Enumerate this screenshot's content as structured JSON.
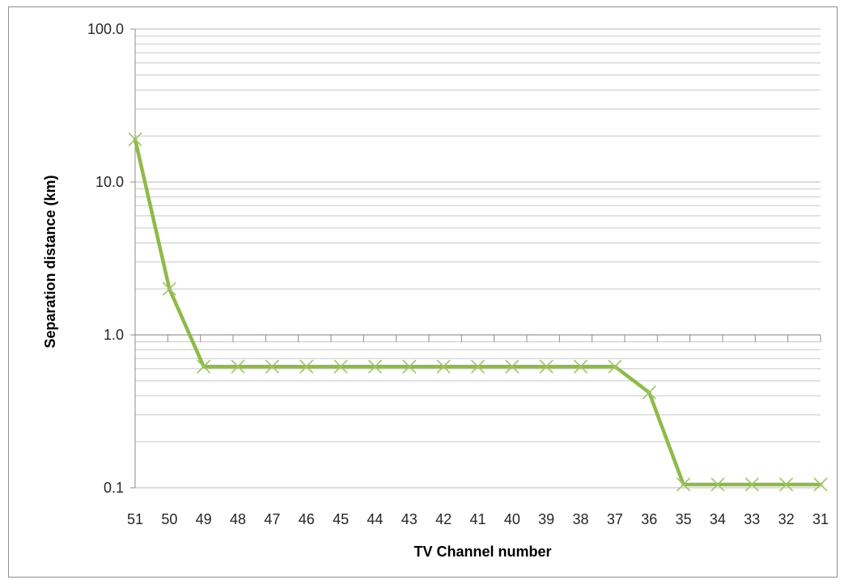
{
  "chart_data": {
    "type": "line",
    "title": "",
    "xlabel": "TV Channel number",
    "ylabel": "Separation distance  (km)",
    "y_scale": "log",
    "ylim": [
      0.1,
      100
    ],
    "y_ticks": [
      "100.0",
      "10.0",
      "1.0",
      "0.1"
    ],
    "y_tick_values": [
      100,
      10,
      1,
      0.1
    ],
    "x_crosses_at": 1,
    "grid": "major-and-minor horizontal",
    "legend": "none",
    "colors": {
      "line": "#8fba4a",
      "marker": "#9cc463",
      "grid": "#c8c8c8",
      "axis": "#8c8c8c"
    },
    "categories": [
      "51",
      "50",
      "49",
      "48",
      "47",
      "46",
      "45",
      "44",
      "43",
      "42",
      "41",
      "40",
      "39",
      "38",
      "37",
      "36",
      "35",
      "34",
      "33",
      "32",
      "31"
    ],
    "series": [
      {
        "marker": "x",
        "values": [
          19,
          2,
          0.62,
          0.62,
          0.62,
          0.62,
          0.62,
          0.62,
          0.62,
          0.62,
          0.62,
          0.62,
          0.62,
          0.62,
          0.62,
          0.42,
          0.105,
          0.105,
          0.105,
          0.105,
          0.105
        ]
      }
    ]
  }
}
